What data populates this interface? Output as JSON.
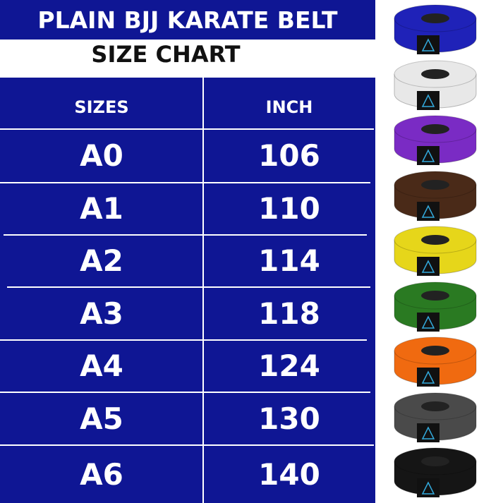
{
  "title": "PLAIN BJJ KARATE BELT",
  "subtitle": "SIZE CHART",
  "header": {
    "sizes": "SIZES",
    "inch": "INCH"
  },
  "rows": [
    {
      "size": "A0",
      "inch": "106"
    },
    {
      "size": "A1",
      "inch": "110"
    },
    {
      "size": "A2",
      "inch": "114"
    },
    {
      "size": "A3",
      "inch": "118"
    },
    {
      "size": "A4",
      "inch": "124"
    },
    {
      "size": "A5",
      "inch": "130"
    },
    {
      "size": "A6",
      "inch": "140"
    }
  ],
  "belt_colors": [
    "#1f22b8",
    "#e8e8e8",
    "#7a2bc4",
    "#4a2a18",
    "#e6d61a",
    "#2a7a22",
    "#f06a10",
    "#4a4a4a",
    "#151515"
  ],
  "table_color": "#0f1694"
}
